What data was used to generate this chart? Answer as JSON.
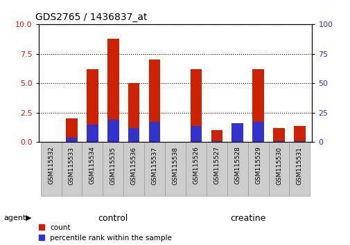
{
  "title": "GDS2765 / 1436837_at",
  "samples": [
    "GSM115532",
    "GSM115533",
    "GSM115534",
    "GSM115535",
    "GSM115536",
    "GSM115537",
    "GSM115538",
    "GSM115526",
    "GSM115527",
    "GSM115528",
    "GSM115529",
    "GSM115530",
    "GSM115531"
  ],
  "count_values": [
    0.0,
    2.0,
    6.2,
    8.8,
    5.0,
    7.0,
    0.0,
    6.2,
    1.0,
    1.5,
    6.2,
    1.2,
    1.4
  ],
  "percentile_values": [
    0.0,
    0.4,
    1.5,
    1.9,
    1.2,
    1.7,
    0.0,
    1.4,
    0.1,
    1.6,
    1.7,
    0.1,
    0.1
  ],
  "control_indices": [
    0,
    1,
    2,
    3,
    4,
    5,
    6
  ],
  "creatine_indices": [
    7,
    8,
    9,
    10,
    11,
    12
  ],
  "control_label": "control",
  "creatine_label": "creatine",
  "agent_label": "agent",
  "ylim": [
    0,
    10
  ],
  "yticks_left": [
    0,
    2.5,
    5.0,
    7.5,
    10
  ],
  "yticks_right": [
    0,
    25,
    50,
    75,
    100
  ],
  "bar_color_red": "#cc2200",
  "bar_color_blue": "#3333cc",
  "control_bg_light": "#bbffbb",
  "creatine_bg_dark": "#33dd33",
  "tick_area_bg": "#cccccc",
  "legend_count_label": "count",
  "legend_percentile_label": "percentile rank within the sample",
  "bar_width": 0.55
}
